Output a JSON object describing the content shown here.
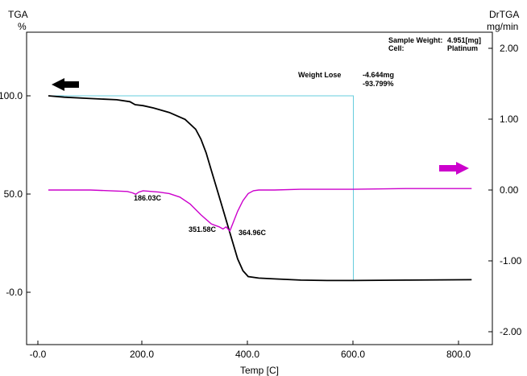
{
  "chart_data": {
    "type": "line",
    "left_axis": {
      "title": "TGA",
      "unit": "%",
      "ticks": [
        "100.0",
        "50.0",
        "-0.0"
      ],
      "range": [
        -28,
        137
      ]
    },
    "right_axis": {
      "title": "DrTGA",
      "unit": "mg/min",
      "ticks": [
        "2.00",
        "1.00",
        "0.00",
        "-1.00",
        "-2.00"
      ],
      "range": [
        -2.2,
        2.3
      ]
    },
    "x_axis": {
      "label": "Temp [C]",
      "ticks": [
        "-0.0",
        "200.0",
        "400.0",
        "600.0",
        "800.0"
      ],
      "range": [
        -25,
        860
      ]
    },
    "info": {
      "sample_weight_label": "Sample Weight:",
      "sample_weight_value": "4.951[mg]",
      "cell_label": "Cell:",
      "cell_value": "Platinum",
      "weight_lose_label": "Weight Lose",
      "weight_lose_mg": "-4.644mg",
      "weight_lose_pct": "-93.799%"
    },
    "annotations": [
      "186.03C",
      "351.58C",
      "364.96C"
    ],
    "colors": {
      "tga": "#000000",
      "drtga": "#cc00cc",
      "marker": "#66ccdd"
    },
    "weight_lose_box": {
      "x_start": 20,
      "x_end": 600,
      "y_level": 100
    },
    "series": [
      {
        "axis": "left",
        "color": "#000000",
        "x": [
          20,
          50,
          100,
          150,
          175,
          185,
          200,
          220,
          250,
          280,
          300,
          310,
          320,
          330,
          340,
          350,
          360,
          370,
          380,
          390,
          400,
          420,
          450,
          500,
          550,
          600,
          700,
          825
        ],
        "y": [
          100,
          99.3,
          98.6,
          98,
          97,
          95.5,
          95,
          93.8,
          91.5,
          88,
          83,
          78,
          71,
          62,
          53,
          44,
          35,
          26,
          17,
          11,
          8,
          7.2,
          6.8,
          6.2,
          6,
          6,
          6.2,
          6.4
        ]
      },
      {
        "axis": "right",
        "color": "#cc00cc",
        "x": [
          20,
          100,
          170,
          180,
          186,
          192,
          200,
          230,
          250,
          270,
          290,
          310,
          330,
          345,
          352,
          358,
          365,
          372,
          380,
          390,
          400,
          410,
          420,
          450,
          500,
          600,
          700,
          825
        ],
        "y": [
          0,
          0,
          -0.02,
          -0.04,
          -0.06,
          -0.03,
          -0.01,
          -0.03,
          -0.05,
          -0.1,
          -0.2,
          -0.35,
          -0.48,
          -0.52,
          -0.55,
          -0.52,
          -0.58,
          -0.45,
          -0.3,
          -0.15,
          -0.05,
          -0.01,
          0,
          0,
          0.01,
          0.01,
          0.02,
          0.02
        ]
      }
    ]
  }
}
